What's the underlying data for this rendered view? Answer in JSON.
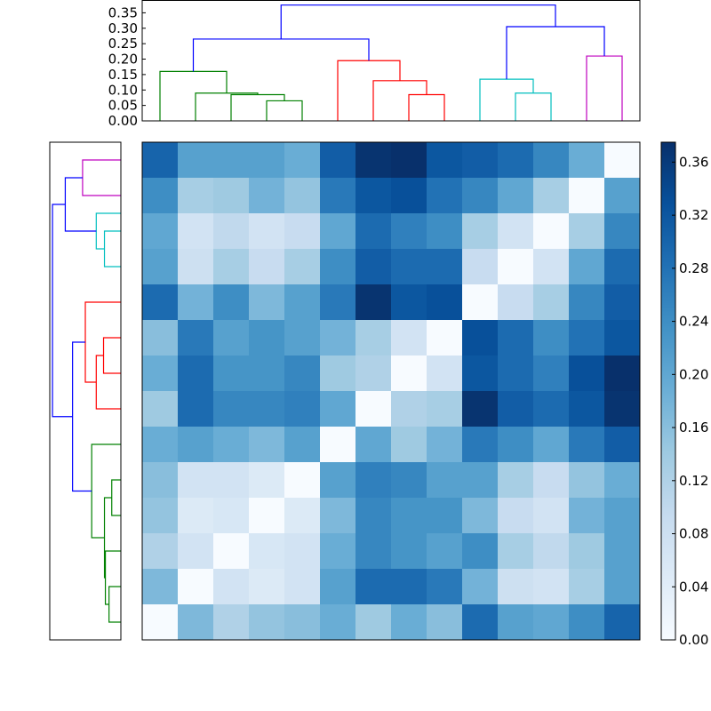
{
  "chart_data": [
    {
      "type": "dendrogram",
      "name": "top-dendrogram",
      "orientation": "top",
      "leaf_count": 14,
      "ylim": [
        0,
        0.39
      ],
      "yticks": [
        "0.00",
        "0.05",
        "0.10",
        "0.15",
        "0.20",
        "0.25",
        "0.30",
        "0.35"
      ],
      "ytick_values": [
        0,
        0.05,
        0.1,
        0.15,
        0.2,
        0.25,
        0.3,
        0.35
      ],
      "links": [
        {
          "left": 3.5,
          "left_h": 0,
          "right": 4.5,
          "right_h": 0,
          "height": 0.065,
          "color": "#008000"
        },
        {
          "left": 2.5,
          "left_h": 0,
          "right": 4.0,
          "right_h": 0.065,
          "height": 0.085,
          "color": "#008000"
        },
        {
          "left": 1.5,
          "left_h": 0,
          "right": 3.25,
          "right_h": 0.085,
          "height": 0.09,
          "color": "#008000"
        },
        {
          "left": 0.5,
          "left_h": 0,
          "right": 2.375,
          "right_h": 0.09,
          "height": 0.16,
          "color": "#008000"
        },
        {
          "left": 7.5,
          "left_h": 0,
          "right": 8.5,
          "right_h": 0,
          "height": 0.085,
          "color": "#ff0000"
        },
        {
          "left": 6.5,
          "left_h": 0,
          "right": 8.0,
          "right_h": 0.085,
          "height": 0.13,
          "color": "#ff0000"
        },
        {
          "left": 5.5,
          "left_h": 0,
          "right": 7.25,
          "right_h": 0.13,
          "height": 0.195,
          "color": "#ff0000"
        },
        {
          "left": 1.4375,
          "left_h": 0.16,
          "right": 6.375,
          "right_h": 0.195,
          "height": 0.265,
          "color": "#0000ff"
        },
        {
          "left": 10.5,
          "left_h": 0,
          "right": 11.5,
          "right_h": 0,
          "height": 0.09,
          "color": "#00bfbf"
        },
        {
          "left": 9.5,
          "left_h": 0,
          "right": 11.0,
          "right_h": 0.09,
          "height": 0.135,
          "color": "#00bfbf"
        },
        {
          "left": 12.5,
          "left_h": 0,
          "right": 13.5,
          "right_h": 0,
          "height": 0.21,
          "color": "#bf00bf"
        },
        {
          "left": 10.25,
          "left_h": 0.135,
          "right": 13.0,
          "right_h": 0.21,
          "height": 0.305,
          "color": "#0000ff"
        },
        {
          "left": 3.90625,
          "left_h": 0.265,
          "right": 11.625,
          "right_h": 0.305,
          "height": 0.375,
          "color": "#0000ff"
        }
      ]
    },
    {
      "type": "dendrogram",
      "name": "left-dendrogram",
      "orientation": "left",
      "leaf_count": 14,
      "xlim": [
        0,
        0.39
      ],
      "links": [
        {
          "left": 0.5,
          "left_h": 0,
          "right": 1.5,
          "right_h": 0,
          "height": 0.065,
          "color": "#008000"
        },
        {
          "left": 1.0,
          "left_h": 0.065,
          "right": 2.5,
          "right_h": 0,
          "height": 0.085,
          "color": "#008000"
        },
        {
          "left": 3.5,
          "left_h": 0,
          "right": 4.5,
          "right_h": 0,
          "height": 0.05,
          "color": "#008000"
        },
        {
          "left": 1.75,
          "left_h": 0.085,
          "right": 4.0,
          "right_h": 0.05,
          "height": 0.09,
          "color": "#008000"
        },
        {
          "left": 2.875,
          "left_h": 0.09,
          "right": 5.5,
          "right_h": 0,
          "height": 0.16,
          "color": "#008000"
        },
        {
          "left": 7.5,
          "left_h": 0,
          "right": 8.5,
          "right_h": 0,
          "height": 0.095,
          "color": "#ff0000"
        },
        {
          "left": 6.5,
          "left_h": 0,
          "right": 8.0,
          "right_h": 0.095,
          "height": 0.135,
          "color": "#ff0000"
        },
        {
          "left": 7.25,
          "left_h": 0.135,
          "right": 9.5,
          "right_h": 0,
          "height": 0.195,
          "color": "#ff0000"
        },
        {
          "left": 4.1875,
          "left_h": 0.16,
          "right": 8.375,
          "right_h": 0.195,
          "height": 0.265,
          "color": "#0000ff"
        },
        {
          "left": 10.5,
          "left_h": 0,
          "right": 11.5,
          "right_h": 0,
          "height": 0.09,
          "color": "#00bfbf"
        },
        {
          "left": 11.0,
          "left_h": 0.09,
          "right": 12.0,
          "right_h": 0,
          "height": 0.135,
          "color": "#00bfbf"
        },
        {
          "left": 12.5,
          "left_h": 0,
          "right": 13.5,
          "right_h": 0,
          "height": 0.21,
          "color": "#bf00bf"
        },
        {
          "left": 11.5,
          "left_h": 0.135,
          "right": 13.0,
          "right_h": 0.21,
          "height": 0.305,
          "color": "#0000ff"
        },
        {
          "left": 6.28125,
          "left_h": 0.265,
          "right": 12.25,
          "right_h": 0.305,
          "height": 0.375,
          "color": "#0000ff"
        }
      ]
    },
    {
      "type": "heatmap",
      "name": "distance-matrix",
      "rows": 14,
      "cols": 14,
      "colormap": "Blues",
      "vmin": 0,
      "vmax": 0.375,
      "values": [
        [
          0.3,
          0.21,
          0.21,
          0.21,
          0.19,
          0.31,
          0.37,
          0.38,
          0.32,
          0.31,
          0.29,
          0.25,
          0.19,
          0.0
        ],
        [
          0.24,
          0.13,
          0.14,
          0.18,
          0.15,
          0.27,
          0.32,
          0.33,
          0.28,
          0.25,
          0.2,
          0.13,
          0.0,
          0.21
        ],
        [
          0.2,
          0.07,
          0.1,
          0.07,
          0.09,
          0.2,
          0.29,
          0.26,
          0.24,
          0.13,
          0.07,
          0.0,
          0.13,
          0.25
        ],
        [
          0.21,
          0.08,
          0.13,
          0.09,
          0.13,
          0.24,
          0.31,
          0.29,
          0.29,
          0.09,
          0.0,
          0.07,
          0.2,
          0.29
        ],
        [
          0.29,
          0.18,
          0.24,
          0.17,
          0.21,
          0.27,
          0.37,
          0.32,
          0.33,
          0.0,
          0.09,
          0.13,
          0.25,
          0.31
        ],
        [
          0.16,
          0.27,
          0.21,
          0.23,
          0.21,
          0.18,
          0.13,
          0.07,
          0.0,
          0.33,
          0.29,
          0.24,
          0.28,
          0.32
        ],
        [
          0.19,
          0.29,
          0.23,
          0.23,
          0.25,
          0.14,
          0.12,
          0.0,
          0.07,
          0.32,
          0.29,
          0.26,
          0.33,
          0.38
        ],
        [
          0.14,
          0.29,
          0.25,
          0.25,
          0.26,
          0.2,
          0.0,
          0.12,
          0.13,
          0.37,
          0.31,
          0.29,
          0.32,
          0.37
        ],
        [
          0.19,
          0.21,
          0.19,
          0.17,
          0.21,
          0.0,
          0.2,
          0.14,
          0.18,
          0.27,
          0.24,
          0.2,
          0.27,
          0.31
        ],
        [
          0.16,
          0.07,
          0.07,
          0.05,
          0.0,
          0.21,
          0.26,
          0.25,
          0.21,
          0.21,
          0.13,
          0.09,
          0.15,
          0.19
        ],
        [
          0.15,
          0.05,
          0.06,
          0.0,
          0.05,
          0.17,
          0.25,
          0.23,
          0.23,
          0.17,
          0.09,
          0.07,
          0.18,
          0.21
        ],
        [
          0.12,
          0.07,
          0.0,
          0.06,
          0.07,
          0.19,
          0.25,
          0.23,
          0.21,
          0.24,
          0.13,
          0.1,
          0.14,
          0.21
        ],
        [
          0.17,
          0.0,
          0.07,
          0.05,
          0.07,
          0.21,
          0.29,
          0.29,
          0.27,
          0.18,
          0.08,
          0.07,
          0.13,
          0.21
        ],
        [
          0.0,
          0.17,
          0.12,
          0.15,
          0.16,
          0.19,
          0.14,
          0.19,
          0.16,
          0.29,
          0.21,
          0.2,
          0.24,
          0.3
        ]
      ]
    },
    {
      "type": "colorbar",
      "name": "colorbar",
      "vmin": 0,
      "vmax": 0.375,
      "ticks": [
        "0.00",
        "0.04",
        "0.08",
        "0.12",
        "0.16",
        "0.20",
        "0.24",
        "0.28",
        "0.32",
        "0.36"
      ],
      "tick_values": [
        0,
        0.04,
        0.08,
        0.12,
        0.16,
        0.2,
        0.24,
        0.28,
        0.32,
        0.36
      ]
    }
  ]
}
